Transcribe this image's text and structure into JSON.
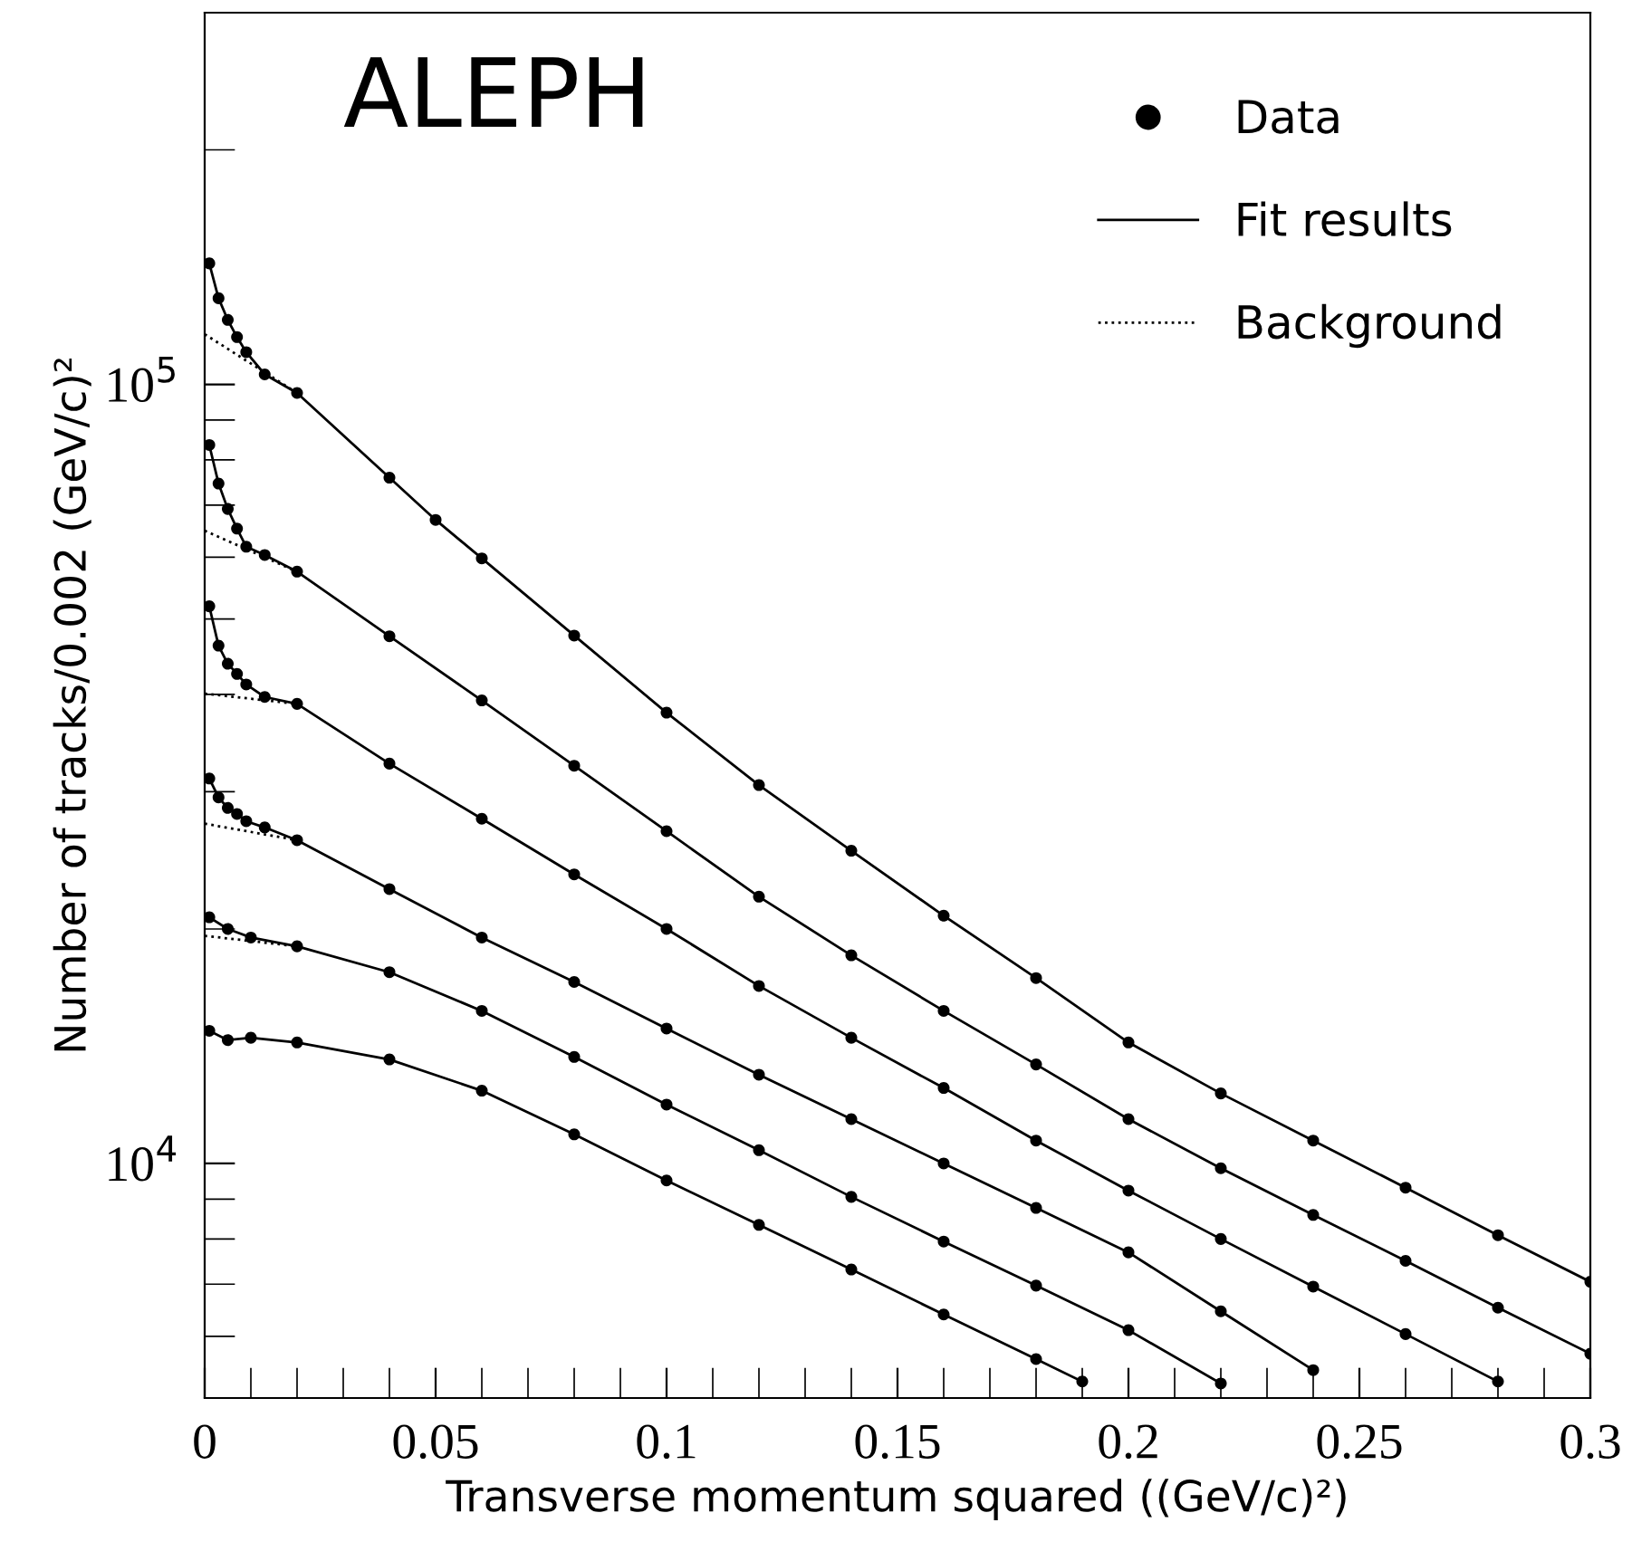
{
  "chart_data": {
    "type": "scatter",
    "xlabel": "Transverse momentum squared ((GeV/c)²)",
    "ylabel": "Number of tracks/0.002 (GeV/c)²",
    "annotations": [
      "ALEPH"
    ],
    "log": "y",
    "xlim": [
      0,
      0.3
    ],
    "ylim": [
      5000,
      300000
    ],
    "xticks": [
      0,
      0.05,
      0.1,
      0.15,
      0.2,
      0.25,
      0.3
    ],
    "yticks": [
      {
        "value": 10000,
        "label": "10$^{4}$"
      },
      {
        "value": 100000,
        "label": "10$^{5}$"
      }
    ],
    "grid": false,
    "legend": "top right",
    "series": [
      {
        "name": "Data",
        "color": "#000000",
        "marker": "circle",
        "x": [
          0.001,
          0.003,
          0.005,
          0.007,
          0.009,
          0.013,
          0.02,
          0.04,
          0.05,
          0.06,
          0.08,
          0.1,
          0.12,
          0.14,
          0.16,
          0.18,
          0.2,
          0.22,
          0.24,
          0.26,
          0.28,
          0.3
        ],
        "values": [
          143000,
          129000,
          121000,
          115000,
          110000,
          103000,
          97500,
          75900,
          67000,
          59800,
          47600,
          37900,
          30600,
          25200,
          20800,
          17300,
          14300,
          12300,
          10700,
          9310,
          8090,
          7050
        ]
      },
      {
        "type": "scatter",
        "color": "#000000",
        "marker": "circle",
        "x": [
          0.001,
          0.003,
          0.005,
          0.007,
          0.009,
          0.013,
          0.02,
          0.04,
          0.06,
          0.08,
          0.1,
          0.12,
          0.14,
          0.16,
          0.18,
          0.2,
          0.22,
          0.24,
          0.26,
          0.28,
          0.3
        ],
        "values": [
          83600,
          74600,
          69200,
          65300,
          61900,
          60400,
          57500,
          47500,
          39300,
          32400,
          26700,
          22000,
          18500,
          15700,
          13400,
          11400,
          9860,
          8590,
          7500,
          6530,
          5700
        ]
      },
      {
        "type": "scatter",
        "color": "#000000",
        "marker": "circle",
        "x": [
          0.001,
          0.003,
          0.005,
          0.007,
          0.009,
          0.013,
          0.02,
          0.04,
          0.06,
          0.08,
          0.1,
          0.12,
          0.14,
          0.16,
          0.18,
          0.2,
          0.22,
          0.24,
          0.26,
          0.28
        ],
        "values": [
          51900,
          46200,
          43800,
          42500,
          41200,
          39700,
          38900,
          32600,
          27700,
          23500,
          20000,
          16900,
          14500,
          12500,
          10700,
          9230,
          8000,
          6950,
          6040,
          5250
        ]
      },
      {
        "type": "scatter",
        "color": "#000000",
        "marker": "circle",
        "x": [
          0.001,
          0.003,
          0.005,
          0.007,
          0.009,
          0.013,
          0.02,
          0.04,
          0.06,
          0.08,
          0.1,
          0.12,
          0.14,
          0.16,
          0.18,
          0.2,
          0.22,
          0.24
        ],
        "values": [
          31200,
          29500,
          28600,
          28100,
          27500,
          27000,
          26000,
          22500,
          19500,
          17100,
          14900,
          13000,
          11400,
          10000,
          8770,
          7690,
          6460,
          5430
        ]
      },
      {
        "type": "scatter",
        "color": "#000000",
        "marker": "circle",
        "x": [
          0.001,
          0.005,
          0.01,
          0.02,
          0.04,
          0.06,
          0.08,
          0.1,
          0.12,
          0.14,
          0.16,
          0.18,
          0.2,
          0.22
        ],
        "values": [
          20700,
          20000,
          19500,
          19000,
          17600,
          15700,
          13700,
          11900,
          10400,
          9060,
          7940,
          6970,
          6110,
          5220
        ]
      },
      {
        "type": "scatter",
        "color": "#000000",
        "marker": "circle",
        "x": [
          0.001,
          0.005,
          0.01,
          0.02,
          0.04,
          0.06,
          0.08,
          0.1,
          0.12,
          0.14,
          0.16,
          0.18,
          0.19
        ],
        "values": [
          14800,
          14400,
          14500,
          14300,
          13600,
          12400,
          10900,
          9510,
          8340,
          7310,
          6400,
          5610,
          5250
        ]
      },
      {
        "type": "line",
        "name": "Fit results",
        "color": "#000000",
        "line_style": "solid",
        "x": [
          0.001,
          0.003,
          0.005,
          0.007,
          0.009,
          0.013,
          0.02,
          0.04,
          0.05,
          0.06,
          0.08,
          0.1,
          0.12,
          0.14,
          0.16,
          0.18,
          0.2,
          0.22,
          0.24,
          0.26,
          0.28,
          0.3
        ],
        "values": [
          143000,
          129000,
          121000,
          115000,
          110000,
          103000,
          97500,
          75900,
          67000,
          59800,
          47600,
          37900,
          30600,
          25200,
          20800,
          17300,
          14300,
          12300,
          10700,
          9310,
          8090,
          7050
        ]
      },
      {
        "type": "line",
        "color": "#000000",
        "line_style": "solid",
        "x": [
          0.001,
          0.003,
          0.005,
          0.007,
          0.009,
          0.013,
          0.02,
          0.04,
          0.06,
          0.08,
          0.1,
          0.12,
          0.14,
          0.16,
          0.18,
          0.2,
          0.22,
          0.24,
          0.26,
          0.28,
          0.3
        ],
        "values": [
          83600,
          74600,
          69200,
          65300,
          61900,
          60400,
          57500,
          47500,
          39300,
          32400,
          26700,
          22000,
          18500,
          15700,
          13400,
          11400,
          9860,
          8590,
          7500,
          6530,
          5700
        ]
      },
      {
        "type": "line",
        "color": "#000000",
        "line_style": "solid",
        "x": [
          0.001,
          0.003,
          0.005,
          0.007,
          0.009,
          0.013,
          0.02,
          0.04,
          0.06,
          0.08,
          0.1,
          0.12,
          0.14,
          0.16,
          0.18,
          0.2,
          0.22,
          0.24,
          0.26,
          0.28
        ],
        "values": [
          51900,
          46200,
          43800,
          42500,
          41200,
          39700,
          38900,
          32600,
          27700,
          23500,
          20000,
          16900,
          14500,
          12500,
          10700,
          9230,
          8000,
          6950,
          6040,
          5250
        ]
      },
      {
        "type": "line",
        "color": "#000000",
        "line_style": "solid",
        "x": [
          0.001,
          0.003,
          0.005,
          0.007,
          0.009,
          0.013,
          0.02,
          0.04,
          0.06,
          0.08,
          0.1,
          0.12,
          0.14,
          0.16,
          0.18,
          0.2,
          0.22,
          0.24
        ],
        "values": [
          31200,
          29500,
          28600,
          28100,
          27500,
          27000,
          26000,
          22500,
          19500,
          17100,
          14900,
          13000,
          11400,
          10000,
          8770,
          7690,
          6460,
          5430
        ]
      },
      {
        "type": "line",
        "color": "#000000",
        "line_style": "solid",
        "x": [
          0.001,
          0.005,
          0.01,
          0.02,
          0.04,
          0.06,
          0.08,
          0.1,
          0.12,
          0.14,
          0.16,
          0.18,
          0.2,
          0.22
        ],
        "values": [
          20700,
          20000,
          19500,
          19000,
          17600,
          15700,
          13700,
          11900,
          10400,
          9060,
          7940,
          6970,
          6110,
          5220
        ]
      },
      {
        "type": "line",
        "color": "#000000",
        "line_style": "solid",
        "x": [
          0.001,
          0.005,
          0.01,
          0.02,
          0.04,
          0.06,
          0.08,
          0.1,
          0.12,
          0.14,
          0.16,
          0.18,
          0.19
        ],
        "values": [
          14800,
          14400,
          14500,
          14300,
          13600,
          12400,
          10900,
          9510,
          8340,
          7310,
          6400,
          5610,
          5250
        ]
      },
      {
        "type": "line",
        "name": "Background",
        "color": "#000000",
        "line_style": "dotted",
        "x": [
          0,
          0.02
        ],
        "values": [
          116000,
          97500
        ]
      },
      {
        "type": "line",
        "color": "#000000",
        "line_style": "dotted",
        "x": [
          0,
          0.02
        ],
        "values": [
          64900,
          57500
        ]
      },
      {
        "type": "line",
        "color": "#000000",
        "line_style": "dotted",
        "x": [
          0,
          0.02
        ],
        "values": [
          40100,
          38900
        ]
      },
      {
        "type": "line",
        "color": "#000000",
        "line_style": "dotted",
        "x": [
          0,
          0.02
        ],
        "values": [
          27300,
          26000
        ]
      },
      {
        "type": "line",
        "color": "#000000",
        "line_style": "dotted",
        "x": [
          0,
          0.02
        ],
        "values": [
          19600,
          19000
        ]
      }
    ]
  }
}
